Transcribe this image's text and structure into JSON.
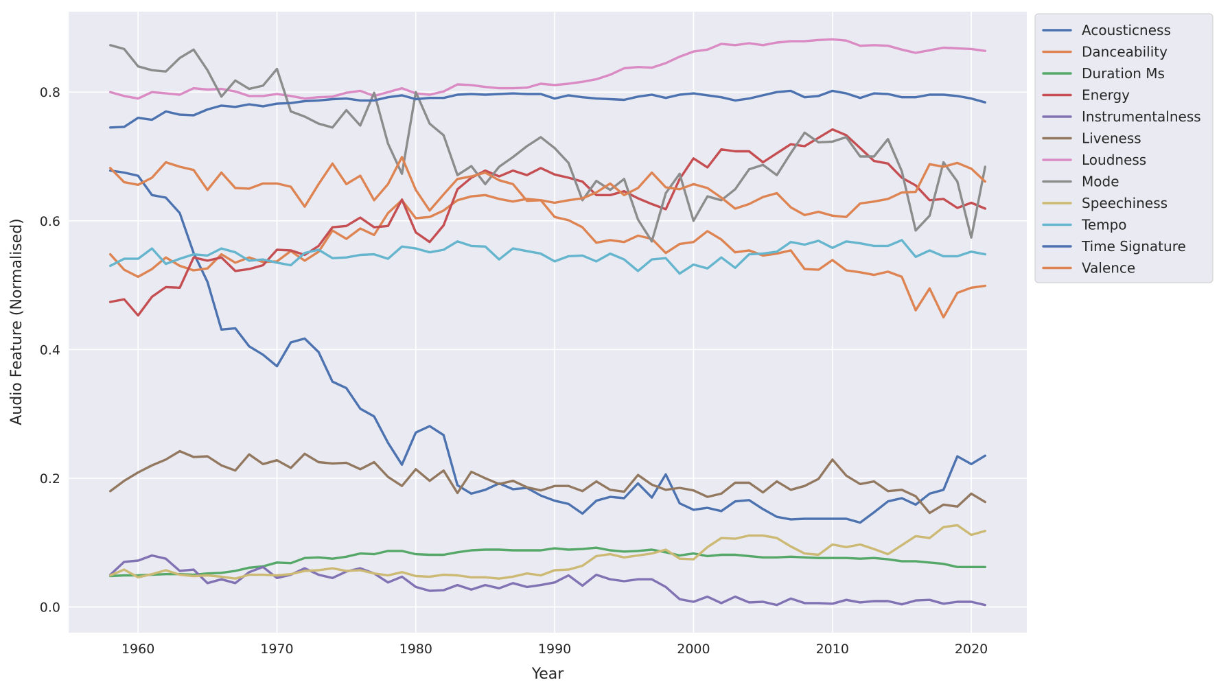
{
  "chart_data": {
    "type": "line",
    "xlabel": "Year",
    "ylabel": "Audio Feature (Normalised)",
    "xlim": [
      1955,
      2024
    ],
    "ylim": [
      -0.04,
      0.925
    ],
    "xticks": [
      1960,
      1970,
      1980,
      1990,
      2000,
      2010,
      2020
    ],
    "yticks": [
      0.0,
      0.2,
      0.4,
      0.6,
      0.8
    ],
    "ytick_labels": [
      "0.0",
      "0.2",
      "0.4",
      "0.6",
      "0.8"
    ],
    "grid": true,
    "legend_position": "outside-right",
    "x": [
      1958,
      1959,
      1960,
      1961,
      1962,
      1963,
      1964,
      1965,
      1966,
      1967,
      1968,
      1969,
      1970,
      1971,
      1972,
      1973,
      1974,
      1975,
      1976,
      1977,
      1978,
      1979,
      1980,
      1981,
      1982,
      1983,
      1984,
      1985,
      1986,
      1987,
      1988,
      1989,
      1990,
      1991,
      1992,
      1993,
      1994,
      1995,
      1996,
      1997,
      1998,
      1999,
      2000,
      2001,
      2002,
      2003,
      2004,
      2005,
      2006,
      2007,
      2008,
      2009,
      2010,
      2011,
      2012,
      2013,
      2014,
      2015,
      2016,
      2017,
      2018,
      2019,
      2020,
      2021
    ],
    "series": [
      {
        "name": "Acousticness",
        "color": "#4C72B0",
        "values": [
          0.678,
          0.675,
          0.67,
          0.64,
          0.636,
          0.612,
          0.55,
          0.505,
          0.431,
          0.433,
          0.405,
          0.392,
          0.374,
          0.411,
          0.417,
          0.396,
          0.35,
          0.34,
          0.308,
          0.296,
          0.255,
          0.221,
          0.271,
          0.281,
          0.267,
          0.189,
          0.176,
          0.182,
          0.192,
          0.183,
          0.185,
          0.173,
          0.165,
          0.16,
          0.145,
          0.165,
          0.171,
          0.169,
          0.192,
          0.17,
          0.206,
          0.161,
          0.151,
          0.154,
          0.149,
          0.164,
          0.166,
          0.152,
          0.14,
          0.136,
          0.137,
          0.137,
          0.137,
          0.137,
          0.131,
          0.147,
          0.164,
          0.169,
          0.159,
          0.176,
          0.182,
          0.234,
          0.222,
          0.235
        ]
      },
      {
        "name": "Danceability",
        "color": "#DD8452",
        "values": [
          0.548,
          0.524,
          0.513,
          0.525,
          0.543,
          0.53,
          0.523,
          0.526,
          0.548,
          0.535,
          0.543,
          0.536,
          0.537,
          0.553,
          0.538,
          0.552,
          0.585,
          0.572,
          0.588,
          0.578,
          0.612,
          0.632,
          0.604,
          0.606,
          0.616,
          0.632,
          0.638,
          0.64,
          0.634,
          0.63,
          0.634,
          0.632,
          0.606,
          0.601,
          0.59,
          0.566,
          0.57,
          0.567,
          0.577,
          0.572,
          0.55,
          0.564,
          0.567,
          0.584,
          0.571,
          0.551,
          0.554,
          0.546,
          0.549,
          0.554,
          0.525,
          0.524,
          0.539,
          0.523,
          0.52,
          0.516,
          0.521,
          0.513,
          0.461,
          0.495,
          0.45,
          0.488,
          0.496,
          0.499
        ]
      },
      {
        "name": "Duration Ms",
        "color": "#55A868",
        "values": [
          0.048,
          0.049,
          0.049,
          0.05,
          0.051,
          0.051,
          0.05,
          0.052,
          0.053,
          0.056,
          0.061,
          0.063,
          0.069,
          0.068,
          0.076,
          0.077,
          0.075,
          0.078,
          0.083,
          0.082,
          0.087,
          0.087,
          0.082,
          0.081,
          0.081,
          0.085,
          0.088,
          0.089,
          0.089,
          0.088,
          0.088,
          0.088,
          0.091,
          0.089,
          0.09,
          0.092,
          0.088,
          0.086,
          0.087,
          0.089,
          0.085,
          0.08,
          0.083,
          0.079,
          0.081,
          0.081,
          0.079,
          0.077,
          0.077,
          0.078,
          0.077,
          0.076,
          0.076,
          0.076,
          0.075,
          0.076,
          0.074,
          0.071,
          0.071,
          0.069,
          0.067,
          0.062,
          0.062,
          0.062
        ]
      },
      {
        "name": "Energy",
        "color": "#C44E52",
        "values": [
          0.474,
          0.478,
          0.453,
          0.482,
          0.497,
          0.496,
          0.543,
          0.538,
          0.543,
          0.522,
          0.525,
          0.531,
          0.555,
          0.554,
          0.547,
          0.561,
          0.59,
          0.592,
          0.605,
          0.59,
          0.592,
          0.633,
          0.582,
          0.567,
          0.593,
          0.649,
          0.667,
          0.678,
          0.669,
          0.678,
          0.671,
          0.682,
          0.672,
          0.667,
          0.661,
          0.64,
          0.64,
          0.646,
          0.635,
          0.626,
          0.618,
          0.665,
          0.697,
          0.683,
          0.711,
          0.708,
          0.708,
          0.691,
          0.705,
          0.719,
          0.716,
          0.729,
          0.742,
          0.733,
          0.713,
          0.693,
          0.689,
          0.667,
          0.655,
          0.632,
          0.634,
          0.62,
          0.628,
          0.619
        ]
      },
      {
        "name": "Instrumentalness",
        "color": "#8172B3",
        "values": [
          0.05,
          0.07,
          0.072,
          0.08,
          0.075,
          0.056,
          0.058,
          0.037,
          0.043,
          0.037,
          0.054,
          0.062,
          0.045,
          0.05,
          0.06,
          0.05,
          0.045,
          0.055,
          0.06,
          0.052,
          0.038,
          0.047,
          0.031,
          0.025,
          0.026,
          0.034,
          0.027,
          0.034,
          0.029,
          0.037,
          0.031,
          0.034,
          0.038,
          0.049,
          0.033,
          0.05,
          0.043,
          0.04,
          0.043,
          0.043,
          0.031,
          0.012,
          0.008,
          0.016,
          0.006,
          0.016,
          0.007,
          0.008,
          0.003,
          0.013,
          0.006,
          0.006,
          0.005,
          0.011,
          0.007,
          0.009,
          0.009,
          0.004,
          0.01,
          0.011,
          0.005,
          0.008,
          0.008,
          0.003
        ]
      },
      {
        "name": "Liveness",
        "color": "#937860",
        "values": [
          0.18,
          0.196,
          0.209,
          0.22,
          0.229,
          0.242,
          0.233,
          0.234,
          0.22,
          0.212,
          0.237,
          0.222,
          0.228,
          0.216,
          0.238,
          0.225,
          0.223,
          0.224,
          0.214,
          0.225,
          0.202,
          0.188,
          0.214,
          0.196,
          0.212,
          0.177,
          0.21,
          0.2,
          0.191,
          0.196,
          0.186,
          0.181,
          0.188,
          0.188,
          0.18,
          0.195,
          0.182,
          0.179,
          0.205,
          0.19,
          0.182,
          0.185,
          0.181,
          0.171,
          0.176,
          0.193,
          0.193,
          0.178,
          0.195,
          0.182,
          0.188,
          0.199,
          0.229,
          0.204,
          0.191,
          0.195,
          0.18,
          0.182,
          0.172,
          0.146,
          0.159,
          0.156,
          0.176,
          0.163
        ]
      },
      {
        "name": "Loudness",
        "color": "#DA8BC3",
        "values": [
          0.8,
          0.794,
          0.79,
          0.8,
          0.798,
          0.796,
          0.806,
          0.804,
          0.805,
          0.801,
          0.794,
          0.794,
          0.797,
          0.794,
          0.79,
          0.792,
          0.793,
          0.799,
          0.802,
          0.794,
          0.8,
          0.806,
          0.798,
          0.796,
          0.801,
          0.812,
          0.811,
          0.808,
          0.806,
          0.806,
          0.807,
          0.813,
          0.811,
          0.813,
          0.816,
          0.82,
          0.827,
          0.837,
          0.839,
          0.838,
          0.845,
          0.855,
          0.863,
          0.866,
          0.875,
          0.873,
          0.876,
          0.873,
          0.877,
          0.879,
          0.879,
          0.881,
          0.882,
          0.88,
          0.872,
          0.873,
          0.872,
          0.866,
          0.861,
          0.865,
          0.869,
          0.868,
          0.867,
          0.864
        ]
      },
      {
        "name": "Mode",
        "color": "#8C8C8C",
        "values": [
          0.873,
          0.867,
          0.84,
          0.834,
          0.832,
          0.853,
          0.866,
          0.834,
          0.793,
          0.818,
          0.805,
          0.81,
          0.836,
          0.77,
          0.762,
          0.751,
          0.745,
          0.772,
          0.748,
          0.799,
          0.72,
          0.673,
          0.8,
          0.751,
          0.733,
          0.671,
          0.685,
          0.657,
          0.684,
          0.699,
          0.716,
          0.73,
          0.713,
          0.69,
          0.632,
          0.662,
          0.648,
          0.665,
          0.602,
          0.568,
          0.643,
          0.673,
          0.6,
          0.638,
          0.632,
          0.649,
          0.68,
          0.687,
          0.671,
          0.705,
          0.737,
          0.722,
          0.723,
          0.73,
          0.7,
          0.7,
          0.727,
          0.677,
          0.585,
          0.608,
          0.691,
          0.661,
          0.574,
          0.684
        ]
      },
      {
        "name": "Speechiness",
        "color": "#CCB974",
        "values": [
          0.049,
          0.058,
          0.046,
          0.051,
          0.057,
          0.05,
          0.048,
          0.049,
          0.047,
          0.044,
          0.05,
          0.05,
          0.049,
          0.051,
          0.056,
          0.057,
          0.06,
          0.056,
          0.057,
          0.052,
          0.049,
          0.054,
          0.048,
          0.047,
          0.05,
          0.049,
          0.046,
          0.046,
          0.044,
          0.047,
          0.052,
          0.049,
          0.057,
          0.058,
          0.064,
          0.079,
          0.082,
          0.077,
          0.08,
          0.083,
          0.089,
          0.075,
          0.074,
          0.093,
          0.107,
          0.106,
          0.111,
          0.111,
          0.107,
          0.094,
          0.083,
          0.081,
          0.097,
          0.093,
          0.097,
          0.09,
          0.082,
          0.096,
          0.11,
          0.107,
          0.124,
          0.127,
          0.112,
          0.118
        ]
      },
      {
        "name": "Tempo",
        "color": "#64B5CD",
        "values": [
          0.53,
          0.541,
          0.541,
          0.557,
          0.533,
          0.541,
          0.548,
          0.546,
          0.557,
          0.551,
          0.538,
          0.54,
          0.535,
          0.531,
          0.55,
          0.555,
          0.542,
          0.543,
          0.547,
          0.548,
          0.541,
          0.56,
          0.557,
          0.551,
          0.555,
          0.568,
          0.561,
          0.56,
          0.54,
          0.557,
          0.553,
          0.549,
          0.537,
          0.545,
          0.546,
          0.537,
          0.549,
          0.54,
          0.522,
          0.54,
          0.542,
          0.518,
          0.532,
          0.526,
          0.543,
          0.527,
          0.548,
          0.549,
          0.552,
          0.567,
          0.563,
          0.569,
          0.558,
          0.568,
          0.565,
          0.561,
          0.561,
          0.57,
          0.544,
          0.554,
          0.545,
          0.545,
          0.552,
          0.548
        ]
      },
      {
        "name": "Time Signature",
        "color": "#4C72B0",
        "values": [
          0.745,
          0.746,
          0.76,
          0.757,
          0.77,
          0.765,
          0.764,
          0.773,
          0.779,
          0.777,
          0.781,
          0.778,
          0.782,
          0.783,
          0.786,
          0.787,
          0.789,
          0.79,
          0.787,
          0.787,
          0.792,
          0.795,
          0.789,
          0.791,
          0.791,
          0.796,
          0.797,
          0.796,
          0.797,
          0.798,
          0.797,
          0.797,
          0.79,
          0.795,
          0.792,
          0.79,
          0.789,
          0.788,
          0.793,
          0.796,
          0.791,
          0.796,
          0.798,
          0.795,
          0.792,
          0.787,
          0.79,
          0.795,
          0.8,
          0.802,
          0.792,
          0.794,
          0.802,
          0.798,
          0.791,
          0.798,
          0.797,
          0.792,
          0.792,
          0.796,
          0.796,
          0.794,
          0.79,
          0.784
        ]
      },
      {
        "name": "Valence",
        "color": "#DD8452",
        "values": [
          0.682,
          0.66,
          0.656,
          0.667,
          0.691,
          0.684,
          0.679,
          0.648,
          0.675,
          0.651,
          0.65,
          0.658,
          0.658,
          0.653,
          0.622,
          0.657,
          0.689,
          0.657,
          0.67,
          0.632,
          0.657,
          0.699,
          0.648,
          0.616,
          0.641,
          0.665,
          0.669,
          0.675,
          0.663,
          0.657,
          0.631,
          0.632,
          0.628,
          0.632,
          0.635,
          0.644,
          0.658,
          0.64,
          0.651,
          0.675,
          0.652,
          0.649,
          0.657,
          0.651,
          0.636,
          0.619,
          0.626,
          0.637,
          0.643,
          0.621,
          0.609,
          0.614,
          0.608,
          0.606,
          0.627,
          0.63,
          0.634,
          0.644,
          0.645,
          0.688,
          0.684,
          0.69,
          0.681,
          0.661
        ]
      }
    ]
  }
}
